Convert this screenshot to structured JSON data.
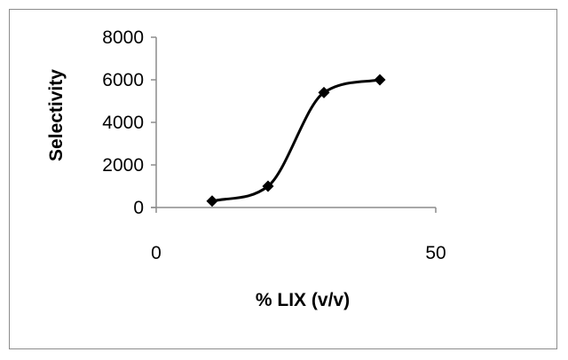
{
  "chart_data": {
    "type": "scatter",
    "title": "",
    "xlabel": "% LIX (v/v)",
    "ylabel": "Selectivity",
    "xlim": [
      0,
      50
    ],
    "ylim": [
      0,
      8000
    ],
    "x_ticks": [
      0,
      50
    ],
    "y_ticks": [
      0,
      2000,
      4000,
      6000,
      8000
    ],
    "x_tick_labels": [
      "0",
      "50"
    ],
    "y_tick_labels": [
      "0",
      "2000",
      "4000",
      "6000",
      "8000"
    ],
    "grid": false,
    "legend": "none",
    "line_style": "smooth",
    "marker": "diamond",
    "color": "#000000",
    "series": [
      {
        "x": [
          10,
          20,
          30,
          40
        ],
        "y": [
          300,
          1000,
          5400,
          6000
        ]
      }
    ]
  }
}
